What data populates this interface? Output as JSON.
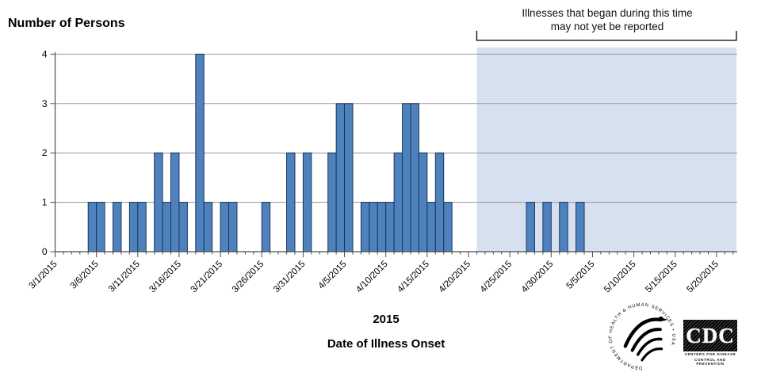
{
  "chart_data": {
    "type": "bar",
    "title": "Number of Persons",
    "x_group_label": "2015",
    "xlabel": "Date of Illness Onset",
    "ylim": [
      0,
      4
    ],
    "y_ticks": [
      "0",
      "1",
      "2",
      "3",
      "4"
    ],
    "x_tick_labels": [
      "3/1/2015",
      "3/6/2015",
      "3/11/2015",
      "3/16/2015",
      "3/21/2015",
      "3/26/2015",
      "3/31/2015",
      "4/5/2015",
      "4/10/2015",
      "4/15/2015",
      "4/20/2015",
      "4/25/2015",
      "4/30/2015",
      "5/5/2015",
      "5/10/2015",
      "5/15/2015",
      "5/20/2015"
    ],
    "x_tick_interval_days": 5,
    "x_start_date": "3/1/2015",
    "days_span": 82.5,
    "grid": "horizontal gridlines on",
    "legend": "none",
    "bar_fill": "#4F81BD",
    "bar_border": "#17375E",
    "axis_color": "#4D4D4D",
    "grid_color": "#969696",
    "bars": [
      {
        "date": "3/5/2015",
        "day": 4,
        "value": 1
      },
      {
        "date": "3/6/2015",
        "day": 5,
        "value": 1
      },
      {
        "date": "3/8/2015",
        "day": 7,
        "value": 1
      },
      {
        "date": "3/10/2015",
        "day": 9,
        "value": 1
      },
      {
        "date": "3/11/2015",
        "day": 10,
        "value": 1
      },
      {
        "date": "3/13/2015",
        "day": 12,
        "value": 2
      },
      {
        "date": "3/14/2015",
        "day": 13,
        "value": 1
      },
      {
        "date": "3/15/2015",
        "day": 14,
        "value": 2
      },
      {
        "date": "3/16/2015",
        "day": 15,
        "value": 1
      },
      {
        "date": "3/18/2015",
        "day": 17,
        "value": 4
      },
      {
        "date": "3/19/2015",
        "day": 18,
        "value": 1
      },
      {
        "date": "3/21/2015",
        "day": 20,
        "value": 1
      },
      {
        "date": "3/22/2015",
        "day": 21,
        "value": 1
      },
      {
        "date": "3/26/2015",
        "day": 25,
        "value": 1
      },
      {
        "date": "3/29/2015",
        "day": 28,
        "value": 2
      },
      {
        "date": "3/31/2015",
        "day": 30,
        "value": 2
      },
      {
        "date": "4/3/2015",
        "day": 33,
        "value": 2
      },
      {
        "date": "4/4/2015",
        "day": 34,
        "value": 3
      },
      {
        "date": "4/5/2015",
        "day": 35,
        "value": 3
      },
      {
        "date": "4/7/2015",
        "day": 37,
        "value": 1
      },
      {
        "date": "4/8/2015",
        "day": 38,
        "value": 1
      },
      {
        "date": "4/9/2015",
        "day": 39,
        "value": 1
      },
      {
        "date": "4/10/2015",
        "day": 40,
        "value": 1
      },
      {
        "date": "4/11/2015",
        "day": 41,
        "value": 2
      },
      {
        "date": "4/12/2015",
        "day": 42,
        "value": 3
      },
      {
        "date": "4/13/2015",
        "day": 43,
        "value": 3
      },
      {
        "date": "4/14/2015",
        "day": 44,
        "value": 2
      },
      {
        "date": "4/15/2015",
        "day": 45,
        "value": 1
      },
      {
        "date": "4/16/2015",
        "day": 46,
        "value": 2
      },
      {
        "date": "4/17/2015",
        "day": 47,
        "value": 1
      },
      {
        "date": "4/27/2015",
        "day": 57,
        "value": 1
      },
      {
        "date": "4/29/2015",
        "day": 59,
        "value": 1
      },
      {
        "date": "5/1/2015",
        "day": 61,
        "value": 1
      },
      {
        "date": "5/3/2015",
        "day": 63,
        "value": 1
      }
    ],
    "shaded_region": {
      "start_day": 51,
      "start_date": "4/21/2015",
      "color": "#D7E0EF",
      "note_line1": "Illnesses that began during this time",
      "note_line2": "may not yet be reported"
    }
  },
  "logos": {
    "hhs_circle_text": "DEPARTMENT OF HEALTH & HUMAN SERVICES • USA",
    "cdc_acronym": "CDC",
    "cdc_line1": "CENTERS FOR DISEASE",
    "cdc_line2": "CONTROL AND PREVENTION"
  }
}
